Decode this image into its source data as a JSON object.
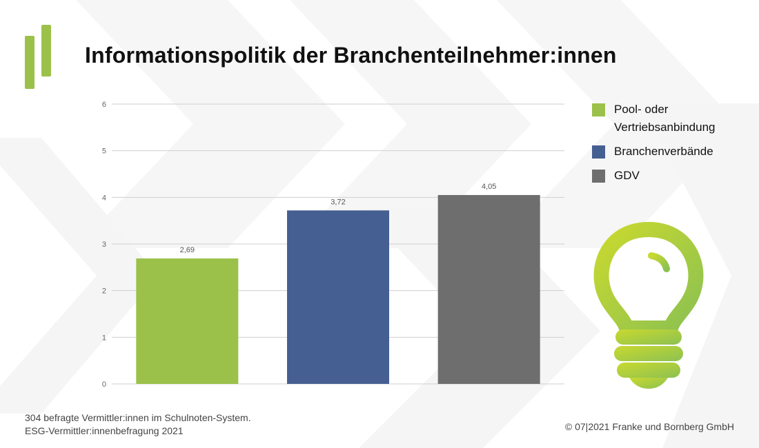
{
  "title": "Informationspolitik der Branchenteilnehmer:innen",
  "chart_data": {
    "type": "bar",
    "title": "Informationspolitik der Branchenteilnehmer:innen",
    "categories": [
      "Pool- oder Vertriebsanbindung",
      "Branchenverbände",
      "GDV"
    ],
    "values": [
      2.69,
      3.72,
      4.05
    ],
    "value_labels": [
      "2,69",
      "3,72",
      "4,05"
    ],
    "colors": [
      "#9bc14a",
      "#465f92",
      "#6e6e6e"
    ],
    "ylim": [
      0,
      6
    ],
    "yticks": [
      "0",
      "1",
      "2",
      "3",
      "4",
      "5",
      "6"
    ],
    "xlabel": "",
    "ylabel": "",
    "grid": true,
    "legend_position": "right"
  },
  "legend": {
    "items": [
      {
        "label": "Pool- oder Vertriebsanbindung",
        "color": "#9bc14a"
      },
      {
        "label": "Branchenverbände",
        "color": "#465f92"
      },
      {
        "label": "GDV",
        "color": "#6e6e6e"
      }
    ]
  },
  "footnote": {
    "line1": "304 befragte Vermittler:innen im Schulnoten-System.",
    "line2": "ESG-Vermittler:innenbefragung 2021"
  },
  "copyright": "© 07|2021 Franke und Bornberg GmbH",
  "icons": {
    "logo": "fb-logo-icon",
    "bulb": "lightbulb-icon"
  }
}
